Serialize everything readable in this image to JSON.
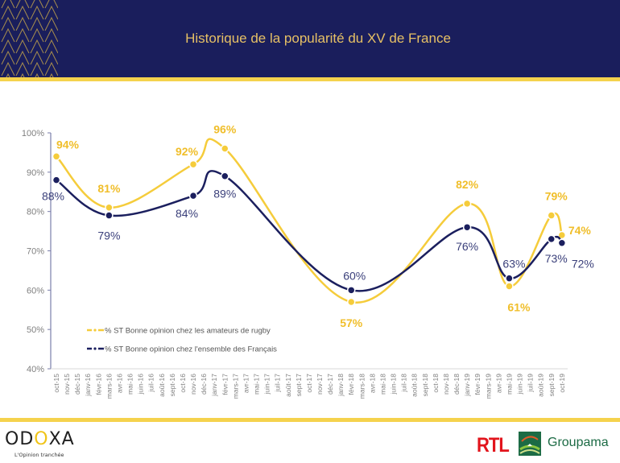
{
  "header": {
    "title": "Historique de la popularité du XV de France"
  },
  "footer": {
    "brand": "ODOXA",
    "tagline": "L'Opinion tranchée",
    "partner1": "RTL",
    "partner2": "Groupama"
  },
  "colors": {
    "navy": "#1a1e5c",
    "gold": "#f5d24d",
    "series_rugby": "#f5cc3b",
    "series_all": "#1b1f5e"
  },
  "chart_data": {
    "type": "line",
    "title": "Historique de la popularité du XV de France",
    "xlabel": "",
    "ylabel": "",
    "ylim": [
      40,
      100
    ],
    "yticks": [
      "40%",
      "50%",
      "60%",
      "70%",
      "80%",
      "90%",
      "100%"
    ],
    "ytick_values": [
      40,
      50,
      60,
      70,
      80,
      90,
      100
    ],
    "grid": false,
    "legend_position": "bottom-left",
    "categories": [
      "oct-15",
      "nov-15",
      "déc-15",
      "janv-16",
      "févr-16",
      "mars-16",
      "avr-16",
      "mai-16",
      "juin-16",
      "juil-16",
      "août-16",
      "sept-16",
      "oct-16",
      "nov-16",
      "déc-16",
      "janv-17",
      "févr-17",
      "mars-17",
      "avr-17",
      "mai-17",
      "juin-17",
      "juil-17",
      "août-17",
      "sept-17",
      "oct-17",
      "nov-17",
      "déc-17",
      "janv-18",
      "févr-18",
      "mars-18",
      "avr-18",
      "mai-18",
      "juin-18",
      "juil-18",
      "août-18",
      "sept-18",
      "oct-18",
      "nov-18",
      "déc-18",
      "janv-19",
      "févr-19",
      "mars-19",
      "avr-19",
      "mai-19",
      "juin-19",
      "juil-19",
      "août-19",
      "sept-19",
      "oct-19"
    ],
    "series": [
      {
        "name": "% ST Bonne opinion chez les amateurs de rugby",
        "points": [
          {
            "x": "oct-15",
            "y": 94,
            "label": "94%"
          },
          {
            "x": "mars-16",
            "y": 81,
            "label": "81%"
          },
          {
            "x": "nov-16",
            "y": 92,
            "label": "92%"
          },
          {
            "x": "févr-17",
            "y": 96,
            "label": "96%"
          },
          {
            "x": "févr-18",
            "y": 57,
            "label": "57%"
          },
          {
            "x": "janv-19",
            "y": 82,
            "label": "82%"
          },
          {
            "x": "mai-19",
            "y": 61,
            "label": "61%"
          },
          {
            "x": "sept-19",
            "y": 79,
            "label": "79%"
          },
          {
            "x": "oct-19",
            "y": 74,
            "label": "74%"
          }
        ]
      },
      {
        "name": "% ST Bonne opinion chez l'ensemble des Français",
        "points": [
          {
            "x": "oct-15",
            "y": 88,
            "label": "88%"
          },
          {
            "x": "mars-16",
            "y": 79,
            "label": "79%"
          },
          {
            "x": "nov-16",
            "y": 84,
            "label": "84%"
          },
          {
            "x": "févr-17",
            "y": 89,
            "label": "89%"
          },
          {
            "x": "févr-18",
            "y": 60,
            "label": "60%"
          },
          {
            "x": "janv-19",
            "y": 76,
            "label": "76%"
          },
          {
            "x": "mai-19",
            "y": 63,
            "label": "63%"
          },
          {
            "x": "sept-19",
            "y": 73,
            "label": "73%"
          },
          {
            "x": "oct-19",
            "y": 72,
            "label": "72%"
          }
        ]
      }
    ]
  }
}
